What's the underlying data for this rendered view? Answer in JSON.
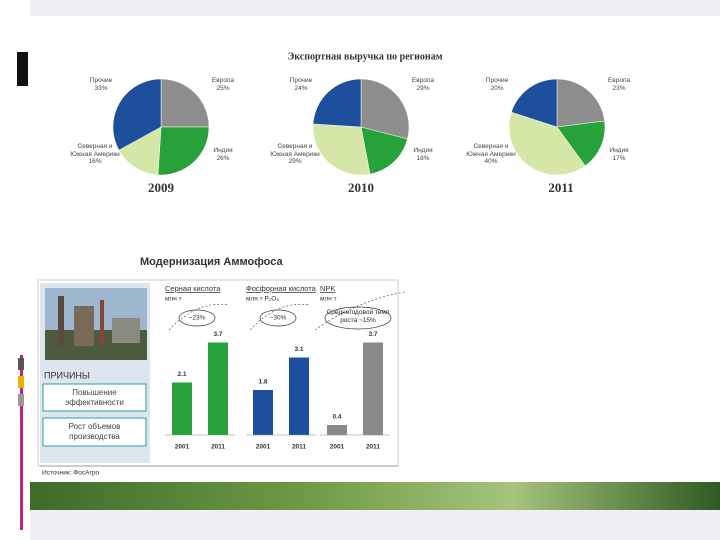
{
  "export_title": "Экспортная выручка по регионам",
  "modernization_title": "Модернизация Аммофоса",
  "reasons_title": "ПРИЧИНЫ",
  "reasons": [
    "Повышение эффективности",
    "Рост объемов производства"
  ],
  "source": "Источник: ФосАгро",
  "chart_data": [
    {
      "type": "pie",
      "title": "2009",
      "labels": [
        "Европа",
        "Индия",
        "Северная и Южная Америки",
        "Прочие"
      ],
      "values": [
        25,
        26,
        16,
        33
      ],
      "value_labels": [
        "25%",
        "26%",
        "16%",
        "33%"
      ],
      "colors": [
        "#8e8e8e",
        "#27a13a",
        "#d5e7a6",
        "#1d4f9c"
      ]
    },
    {
      "type": "pie",
      "title": "2010",
      "labels": [
        "Европа",
        "Индия",
        "Северная и Южная Америки",
        "Прочие"
      ],
      "values": [
        29,
        18,
        29,
        24
      ],
      "value_labels": [
        "29%",
        "18%",
        "29%",
        "24%"
      ],
      "colors": [
        "#8e8e8e",
        "#27a13a",
        "#d5e7a6",
        "#1d4f9c"
      ]
    },
    {
      "type": "pie",
      "title": "2011",
      "labels": [
        "Европа",
        "Индия",
        "Северная и Южная Америки",
        "Прочие"
      ],
      "values": [
        23,
        17,
        40,
        20
      ],
      "value_labels": [
        "23%",
        "17%",
        "40%",
        "20%"
      ],
      "colors": [
        "#8e8e8e",
        "#27a13a",
        "#d5e7a6",
        "#1d4f9c"
      ]
    },
    {
      "type": "bar",
      "title": "Серная кислота",
      "unit": "млн т",
      "annotation": "~23%",
      "categories": [
        "2001",
        "2011"
      ],
      "values": [
        2.1,
        3.7
      ],
      "color": "#27a13a",
      "ylim": [
        0,
        4
      ]
    },
    {
      "type": "bar",
      "title": "Фосфорная кислота",
      "unit": "млн т P₂O₅",
      "annotation": "~30%",
      "categories": [
        "2001",
        "2011"
      ],
      "values": [
        1.8,
        3.1
      ],
      "color": "#1d4f9c",
      "ylim": [
        0,
        4
      ]
    },
    {
      "type": "bar",
      "title": "NPK",
      "unit": "млн т",
      "annotation": "Среднегодовой темп роста ~15%",
      "categories": [
        "2001",
        "2011"
      ],
      "values": [
        0.4,
        3.7
      ],
      "color": "#8a8a8a",
      "ylim": [
        0,
        4
      ]
    }
  ]
}
